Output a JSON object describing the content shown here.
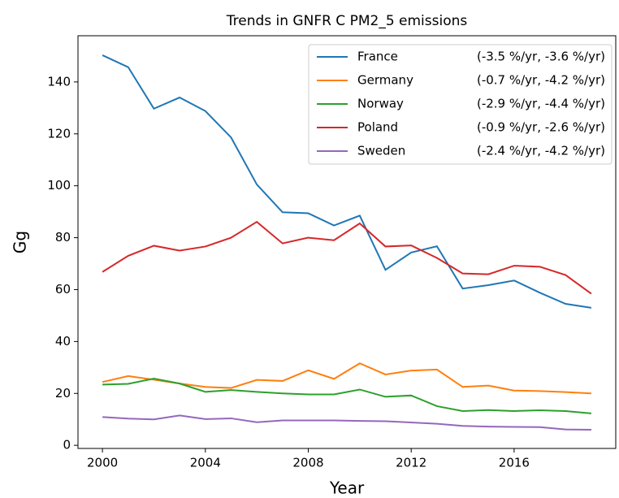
{
  "chart_data": {
    "type": "line",
    "title": "Trends in GNFR C PM2_5 emissions",
    "x_label": "Year",
    "y_label": "Gg",
    "x": [
      2000,
      2001,
      2002,
      2003,
      2004,
      2005,
      2006,
      2007,
      2008,
      2009,
      2010,
      2011,
      2012,
      2013,
      2014,
      2015,
      2016,
      2017,
      2018,
      2019
    ],
    "series": [
      {
        "name": "France",
        "legend_note": "(-3.5 %/yr, -3.6 %/yr)",
        "color": "#1f77b4",
        "values": [
          150.3,
          145.7,
          129.7,
          134,
          128.8,
          118.6,
          100.5,
          89.8,
          89.4,
          84.7,
          88.5,
          67.6,
          74.3,
          76.7,
          60.4,
          61.7,
          63.5,
          58.8,
          54.5,
          53
        ]
      },
      {
        "name": "Germany",
        "legend_note": "(-0.7 %/yr, -4.2 %/yr)",
        "color": "#ff7f0e",
        "values": [
          24.4,
          26.7,
          25.3,
          23.8,
          22.5,
          22.1,
          25.2,
          24.8,
          28.9,
          25.6,
          31.6,
          27.3,
          28.8,
          29.2,
          22.5,
          23,
          21.1,
          20.9,
          20.5,
          20
        ]
      },
      {
        "name": "Norway",
        "legend_note": "(-2.9 %/yr, -4.4 %/yr)",
        "color": "#2ca02c",
        "values": [
          23.4,
          23.7,
          25.7,
          23.8,
          20.6,
          21.3,
          20.6,
          20,
          19.6,
          19.6,
          21.5,
          18.7,
          19.2,
          15.1,
          13.2,
          13.6,
          13.2,
          13.5,
          13.2,
          12.3
        ]
      },
      {
        "name": "Poland",
        "legend_note": "(-0.9 %/yr, -2.6 %/yr)",
        "color": "#d62728",
        "values": [
          66.8,
          73,
          76.9,
          75,
          76.6,
          80,
          86.1,
          77.8,
          80,
          79,
          85.5,
          76.6,
          77,
          72.2,
          66.2,
          65.9,
          69.2,
          68.8,
          65.6,
          58.4
        ]
      },
      {
        "name": "Sweden",
        "legend_note": "(-2.4 %/yr, -4.2 %/yr)",
        "color": "#9467bd",
        "values": [
          10.9,
          10.3,
          10,
          11.5,
          10.1,
          10.4,
          8.9,
          9.6,
          9.6,
          9.6,
          9.4,
          9.3,
          8.8,
          8.3,
          7.5,
          7.2,
          7.1,
          7,
          6.1,
          6
        ]
      }
    ],
    "xlim": [
      1999.05,
      2019.95
    ],
    "xticks": [
      2000,
      2004,
      2008,
      2012,
      2016
    ],
    "ylim": [
      -1.2,
      157.8
    ],
    "yticks": [
      0,
      20,
      40,
      60,
      80,
      100,
      120,
      140
    ],
    "grid": false,
    "legend": "upper right"
  }
}
